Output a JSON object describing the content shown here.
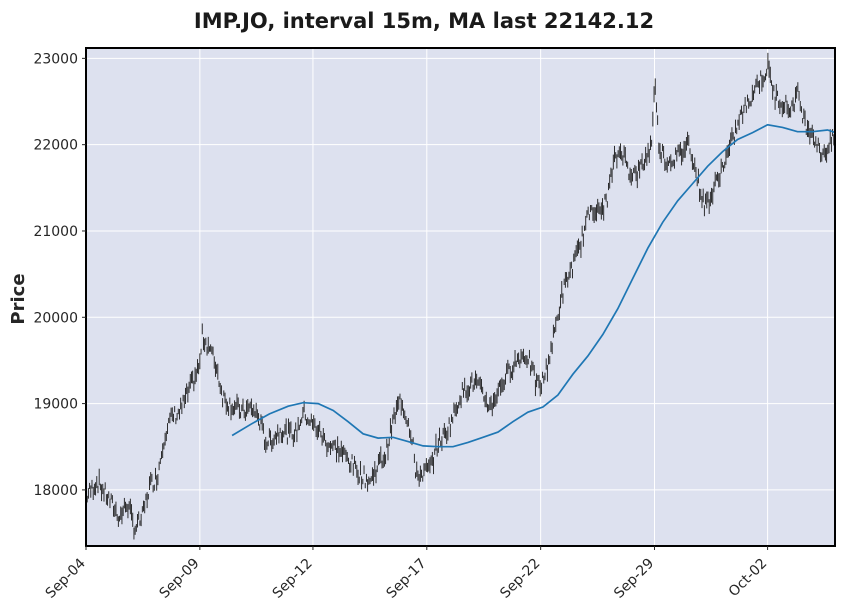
{
  "colors": {
    "plot_background": "#dde1ef",
    "grid": "#ffffff",
    "candle": "#1a1a1a",
    "ma_line": "#1f77b4",
    "frame": "#000000"
  },
  "chart_data": {
    "type": "line",
    "title": "IMP.JO, interval 15m, MA last 22142.12",
    "ylabel": "Price",
    "xlabel": "",
    "ylim": [
      17350,
      23120
    ],
    "x_range": [
      0,
      100
    ],
    "grid": true,
    "yticks": [
      18000,
      19000,
      20000,
      21000,
      22000,
      23000
    ],
    "xticks": [
      {
        "label": "Sep-04",
        "x": 0
      },
      {
        "label": "Sep-09",
        "x": 15.2
      },
      {
        "label": "Sep-12",
        "x": 30.3
      },
      {
        "label": "Sep-17",
        "x": 45.5
      },
      {
        "label": "Sep-22",
        "x": 60.7
      },
      {
        "label": "Sep-29",
        "x": 75.9
      },
      {
        "label": "Oct-02",
        "x": 91.0
      }
    ],
    "series": [
      {
        "name": "",
        "kind": "price",
        "points": [
          [
            0,
            17920
          ],
          [
            1.5,
            18100
          ],
          [
            3,
            17900
          ],
          [
            4.5,
            17680
          ],
          [
            5.5,
            17850
          ],
          [
            6.5,
            17550
          ],
          [
            7.5,
            17680
          ],
          [
            8.5,
            18050
          ],
          [
            9.5,
            18150
          ],
          [
            10.5,
            18650
          ],
          [
            11.5,
            18850
          ],
          [
            12.5,
            18900
          ],
          [
            13.5,
            19100
          ],
          [
            14.5,
            19300
          ],
          [
            15.2,
            19450
          ],
          [
            15.5,
            19780
          ],
          [
            16.5,
            19650
          ],
          [
            17.5,
            19400
          ],
          [
            18.2,
            19100
          ],
          [
            19,
            19000
          ],
          [
            20,
            18950
          ],
          [
            21,
            18900
          ],
          [
            22,
            18950
          ],
          [
            23,
            18850
          ],
          [
            24,
            18550
          ],
          [
            25,
            18600
          ],
          [
            26,
            18700
          ],
          [
            27,
            18650
          ],
          [
            28,
            18650
          ],
          [
            29,
            18900
          ],
          [
            30.3,
            18750
          ],
          [
            31,
            18700
          ],
          [
            32,
            18550
          ],
          [
            33,
            18500
          ],
          [
            34,
            18450
          ],
          [
            35,
            18350
          ],
          [
            36,
            18250
          ],
          [
            37,
            18150
          ],
          [
            38,
            18100
          ],
          [
            39,
            18300
          ],
          [
            40,
            18400
          ],
          [
            41,
            18800
          ],
          [
            42,
            19050
          ],
          [
            43,
            18800
          ],
          [
            43.7,
            18550
          ],
          [
            44,
            18150
          ],
          [
            45,
            18200
          ],
          [
            46,
            18250
          ],
          [
            47,
            18550
          ],
          [
            48,
            18650
          ],
          [
            49,
            18850
          ],
          [
            50,
            19100
          ],
          [
            51,
            19200
          ],
          [
            52,
            19250
          ],
          [
            53,
            19100
          ],
          [
            54,
            18950
          ],
          [
            55,
            19150
          ],
          [
            56,
            19300
          ],
          [
            57,
            19450
          ],
          [
            58,
            19550
          ],
          [
            59,
            19550
          ],
          [
            60,
            19250
          ],
          [
            60.7,
            19200
          ],
          [
            61.5,
            19400
          ],
          [
            62.5,
            19800
          ],
          [
            63.5,
            20250
          ],
          [
            64.5,
            20500
          ],
          [
            65.5,
            20700
          ],
          [
            66.5,
            21000
          ],
          [
            67.5,
            21300
          ],
          [
            68.5,
            21200
          ],
          [
            69.5,
            21350
          ],
          [
            70.5,
            21800
          ],
          [
            71.5,
            21950
          ],
          [
            72.5,
            21700
          ],
          [
            73.5,
            21650
          ],
          [
            74.5,
            21800
          ],
          [
            75.5,
            22000
          ],
          [
            75.9,
            22750
          ],
          [
            76.5,
            22000
          ],
          [
            77.5,
            21800
          ],
          [
            78.5,
            21850
          ],
          [
            79.5,
            21900
          ],
          [
            80.5,
            22050
          ],
          [
            81.5,
            21650
          ],
          [
            82.5,
            21300
          ],
          [
            83.5,
            21400
          ],
          [
            84.5,
            21650
          ],
          [
            85.5,
            21850
          ],
          [
            86.5,
            22100
          ],
          [
            87.5,
            22350
          ],
          [
            88.5,
            22500
          ],
          [
            89.5,
            22700
          ],
          [
            90.5,
            22800
          ],
          [
            91,
            22900
          ],
          [
            92,
            22550
          ],
          [
            93,
            22500
          ],
          [
            94,
            22400
          ],
          [
            95,
            22600
          ],
          [
            96,
            22250
          ],
          [
            97,
            22150
          ],
          [
            98,
            21900
          ],
          [
            99,
            21950
          ],
          [
            100,
            22100
          ]
        ]
      },
      {
        "name": "",
        "kind": "moving_average",
        "points": [
          [
            19.5,
            18630
          ],
          [
            22,
            18760
          ],
          [
            24.5,
            18880
          ],
          [
            27,
            18970
          ],
          [
            29,
            19010
          ],
          [
            31,
            19000
          ],
          [
            33,
            18920
          ],
          [
            35,
            18790
          ],
          [
            37,
            18650
          ],
          [
            39,
            18600
          ],
          [
            41,
            18610
          ],
          [
            43,
            18560
          ],
          [
            45,
            18510
          ],
          [
            47,
            18500
          ],
          [
            49,
            18500
          ],
          [
            51,
            18550
          ],
          [
            53,
            18610
          ],
          [
            55,
            18670
          ],
          [
            57,
            18790
          ],
          [
            59,
            18900
          ],
          [
            61,
            18960
          ],
          [
            63,
            19100
          ],
          [
            65,
            19340
          ],
          [
            67,
            19550
          ],
          [
            69,
            19800
          ],
          [
            71,
            20100
          ],
          [
            73,
            20450
          ],
          [
            75,
            20800
          ],
          [
            77,
            21100
          ],
          [
            79,
            21350
          ],
          [
            81,
            21550
          ],
          [
            83,
            21750
          ],
          [
            85,
            21920
          ],
          [
            87,
            22060
          ],
          [
            89,
            22140
          ],
          [
            91,
            22230
          ],
          [
            93,
            22200
          ],
          [
            95,
            22150
          ],
          [
            97,
            22150
          ],
          [
            99,
            22170
          ],
          [
            100,
            22142.12
          ]
        ]
      }
    ]
  }
}
